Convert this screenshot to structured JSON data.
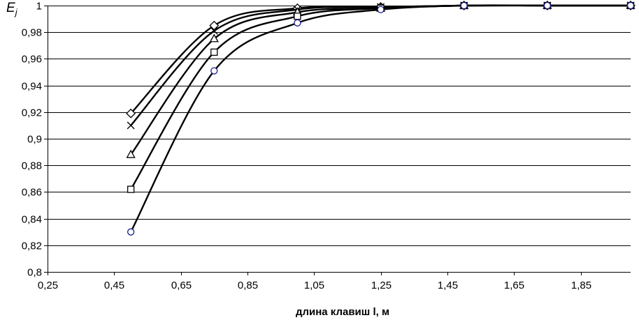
{
  "chart_data": {
    "type": "line",
    "title": "",
    "xlabel": "длина клавиш l, м",
    "ylabel_main": "E",
    "ylabel_sub": "j",
    "xlim": [
      0.25,
      2.0
    ],
    "ylim": [
      0.8,
      1.0
    ],
    "x_ticks": [
      0.25,
      0.45,
      0.65,
      0.85,
      1.05,
      1.25,
      1.45,
      1.65,
      1.85
    ],
    "x_tick_labels": [
      "0,25",
      "0,45",
      "0,65",
      "0,85",
      "1,05",
      "1,25",
      "1,45",
      "1,65",
      "1,85"
    ],
    "y_ticks": [
      0.8,
      0.82,
      0.84,
      0.86,
      0.88,
      0.9,
      0.92,
      0.94,
      0.96,
      0.98,
      1.0
    ],
    "y_tick_labels": [
      "0,8",
      "0,82",
      "0,84",
      "0,86",
      "0,88",
      "0,9",
      "0,92",
      "0,94",
      "0,96",
      "0,98",
      "1"
    ],
    "grid": "horizontal",
    "legend": "none",
    "x": [
      0.5,
      0.75,
      1.0,
      1.25,
      1.5,
      1.75,
      2.0
    ],
    "series": [
      {
        "marker": "diamond",
        "values": [
          0.919,
          0.985,
          0.998,
          0.999,
          1.0,
          1.0,
          1.0
        ]
      },
      {
        "marker": "cross",
        "values": [
          0.91,
          0.981,
          0.997,
          0.999,
          1.0,
          1.0,
          1.0
        ]
      },
      {
        "marker": "triangle",
        "values": [
          0.888,
          0.975,
          0.995,
          0.998,
          1.0,
          1.0,
          1.0
        ]
      },
      {
        "marker": "square",
        "values": [
          0.862,
          0.965,
          0.992,
          0.998,
          1.0,
          1.0,
          1.0
        ]
      },
      {
        "marker": "circle",
        "values": [
          0.83,
          0.951,
          0.987,
          0.997,
          1.0,
          1.0,
          1.0
        ]
      }
    ],
    "colors": {
      "line": "#000000",
      "grid": "#000000",
      "circle_fill": "#ffffff",
      "circle_stroke": "#1a1a8c"
    }
  }
}
